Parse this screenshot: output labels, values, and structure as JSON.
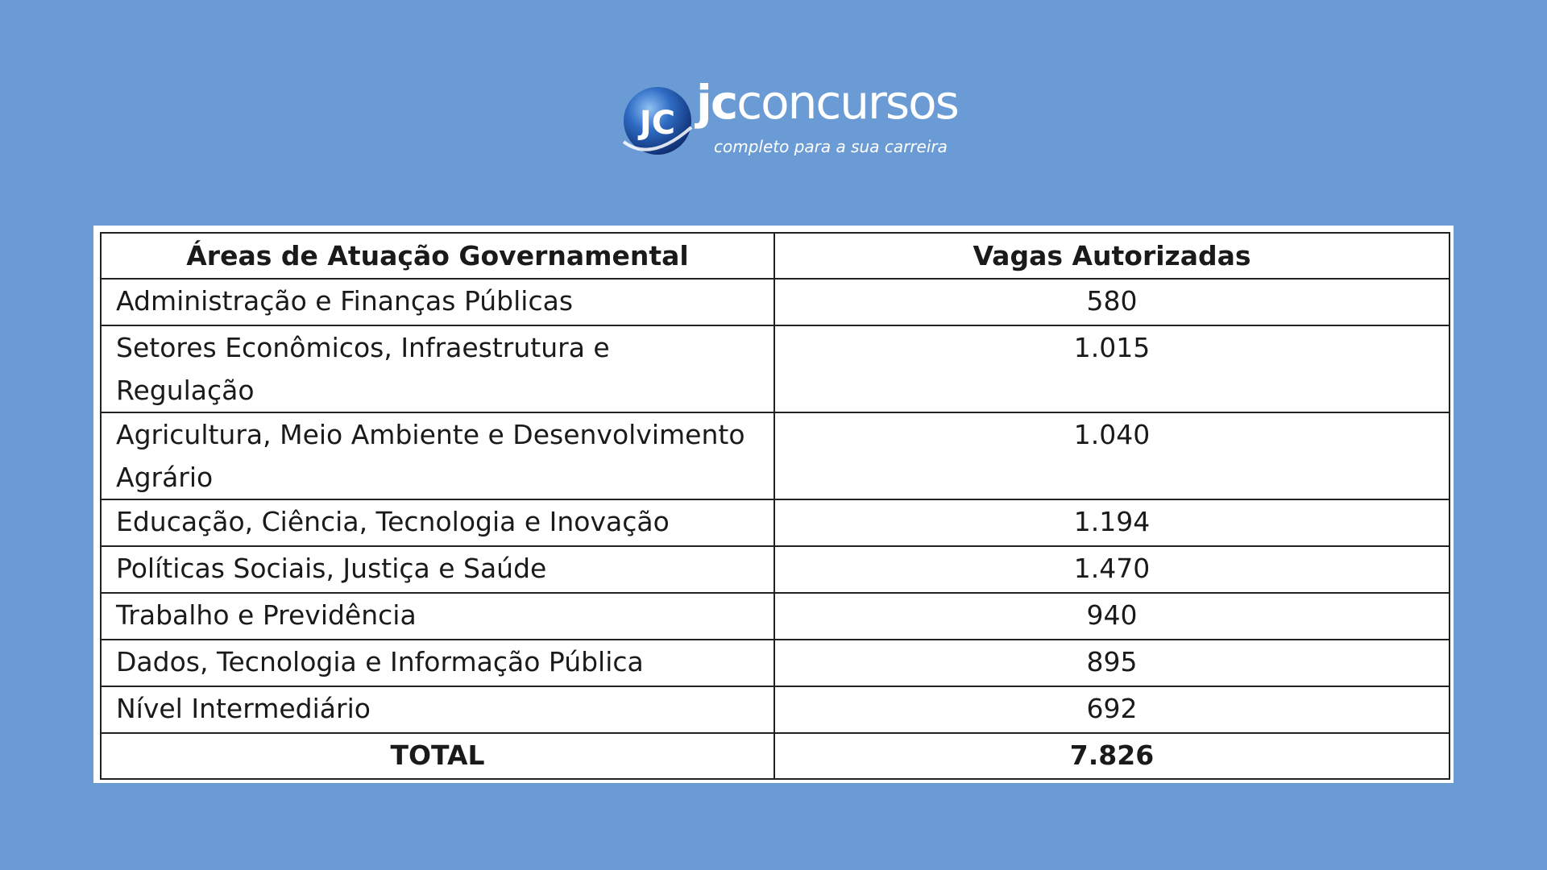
{
  "logo": {
    "badge_text": "JC",
    "word_bold": "jc",
    "word_rest": "concursos",
    "tagline": "completo para a sua carreira"
  },
  "table": {
    "headers": [
      "Áreas de Atuação Governamental",
      "Vagas Autorizadas"
    ],
    "rows": [
      {
        "area": "Administração e Finanças Públicas",
        "vagas": "580"
      },
      {
        "area": "Setores Econômicos, Infraestrutura e Regulação",
        "vagas": "1.015"
      },
      {
        "area": "Agricultura, Meio Ambiente e Desenvolvimento Agrário",
        "vagas": "1.040"
      },
      {
        "area": "Educação, Ciência, Tecnologia e Inovação",
        "vagas": "1.194"
      },
      {
        "area": "Políticas Sociais, Justiça e Saúde",
        "vagas": "1.470"
      },
      {
        "area": "Trabalho e Previdência",
        "vagas": "940"
      },
      {
        "area": "Dados, Tecnologia e Informação Pública",
        "vagas": "895"
      },
      {
        "area": "Nível Intermediário",
        "vagas": "692"
      }
    ],
    "total": {
      "label": "TOTAL",
      "value": "7.826"
    }
  },
  "colors": {
    "background": "#6b9bd5",
    "table_background": "#ffffff",
    "border": "#222222",
    "logo_blue": "#1f4f9e"
  }
}
